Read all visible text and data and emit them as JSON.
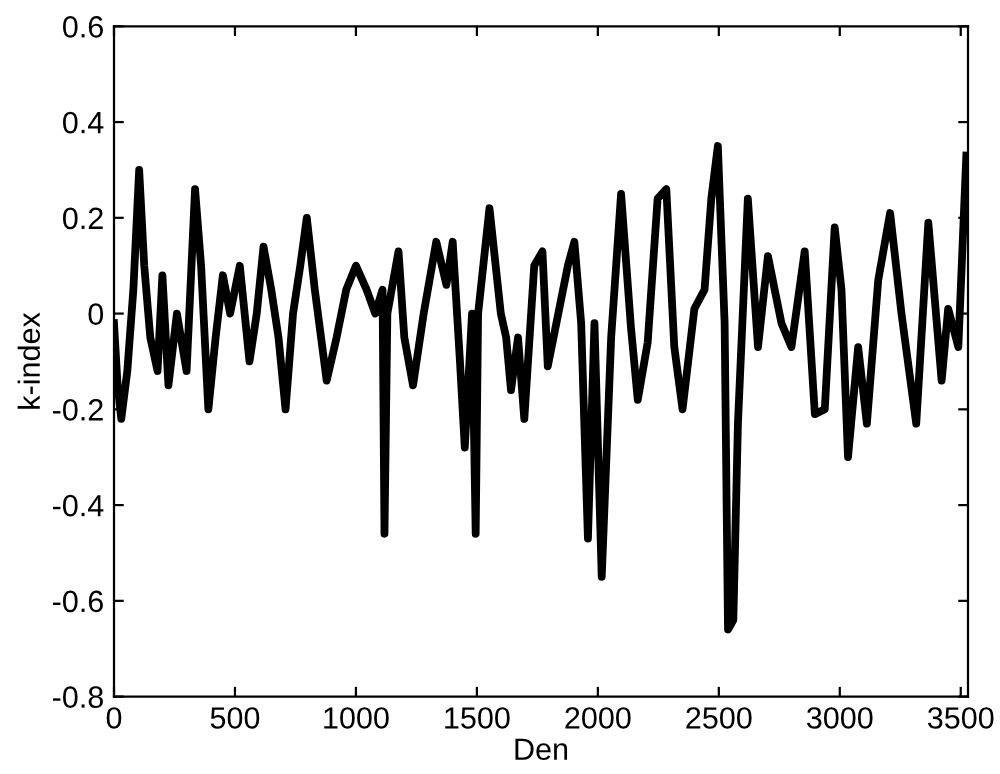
{
  "chart_data": {
    "type": "line",
    "xlabel": "Den",
    "ylabel": "k-index",
    "xlim": [
      0,
      3530
    ],
    "ylim": [
      -0.8,
      0.6
    ],
    "xticks": [
      0,
      500,
      1000,
      1500,
      2000,
      2500,
      3000,
      3500
    ],
    "yticks": [
      -0.8,
      -0.6,
      -0.4,
      -0.2,
      0,
      0.2,
      0.4,
      0.6
    ],
    "marker": "none",
    "line_style": "solid",
    "series": [
      {
        "color": "#000000",
        "x": [
          0,
          15,
          30,
          55,
          80,
          104,
          125,
          150,
          180,
          200,
          225,
          260,
          300,
          335,
          360,
          390,
          420,
          450,
          480,
          520,
          560,
          590,
          618,
          650,
          680,
          709,
          740,
          770,
          797,
          830,
          879,
          920,
          960,
          1000,
          1044,
          1080,
          1110,
          1118,
          1130,
          1176,
          1200,
          1236,
          1280,
          1332,
          1374,
          1400,
          1430,
          1450,
          1480,
          1495,
          1505,
          1552,
          1599,
          1621,
          1641,
          1670,
          1696,
          1737,
          1771,
          1793,
          1876,
          1903,
          1931,
          1959,
          1986,
          2016,
          2055,
          2096,
          2137,
          2165,
          2206,
          2247,
          2283,
          2316,
          2350,
          2399,
          2441,
          2469,
          2496,
          2524,
          2538,
          2560,
          2579,
          2620,
          2662,
          2703,
          2759,
          2800,
          2855,
          2897,
          2938,
          2979,
          3007,
          3034,
          3076,
          3112,
          3159,
          3208,
          3255,
          3316,
          3366,
          3421,
          3448,
          3490,
          3523
        ],
        "values": [
          -0.02,
          -0.15,
          -0.22,
          -0.12,
          0.05,
          0.3,
          0.1,
          -0.05,
          -0.12,
          0.08,
          -0.15,
          0.0,
          -0.12,
          0.26,
          0.1,
          -0.2,
          -0.05,
          0.08,
          0.0,
          0.1,
          -0.1,
          0.0,
          0.14,
          0.05,
          -0.05,
          -0.2,
          0.0,
          0.1,
          0.2,
          0.05,
          -0.14,
          -0.05,
          0.05,
          0.1,
          0.05,
          0.0,
          0.05,
          -0.46,
          0.0,
          0.13,
          -0.05,
          -0.15,
          0.0,
          0.15,
          0.06,
          0.15,
          -0.1,
          -0.28,
          0.0,
          -0.46,
          0.0,
          0.22,
          0.0,
          -0.05,
          -0.16,
          -0.05,
          -0.22,
          0.1,
          0.13,
          -0.11,
          0.1,
          0.15,
          -0.02,
          -0.47,
          -0.02,
          -0.55,
          -0.05,
          0.25,
          -0.03,
          -0.18,
          -0.06,
          0.24,
          0.26,
          -0.07,
          -0.2,
          0.01,
          0.05,
          0.24,
          0.35,
          -0.02,
          -0.66,
          -0.64,
          -0.23,
          0.24,
          -0.07,
          0.12,
          -0.02,
          -0.07,
          0.13,
          -0.21,
          -0.2,
          0.18,
          0.05,
          -0.3,
          -0.07,
          -0.23,
          0.07,
          0.21,
          0.0,
          -0.23,
          0.19,
          -0.14,
          0.01,
          -0.07,
          0.33
        ]
      }
    ]
  }
}
